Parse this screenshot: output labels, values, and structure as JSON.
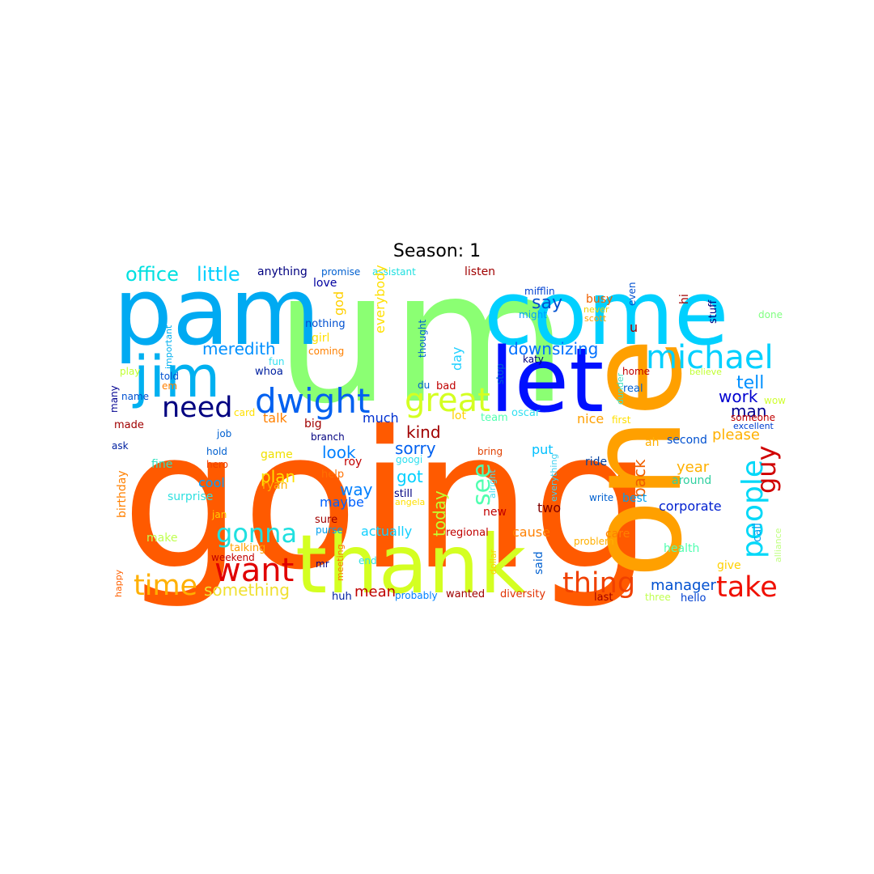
{
  "title": "Season: 1",
  "words": [
    {
      "text": "going",
      "color": "#ff5a00"
    },
    {
      "text": "um",
      "color": "#8bff73"
    },
    {
      "text": "pam",
      "color": "#00aaf2"
    },
    {
      "text": "come",
      "color": "#00d0ff"
    },
    {
      "text": "one",
      "color": "#ffa000"
    },
    {
      "text": "thank",
      "color": "#d4ff22"
    },
    {
      "text": "let",
      "color": "#0010ff"
    },
    {
      "text": "jim",
      "color": "#00b0f0"
    },
    {
      "text": "dwight",
      "color": "#0060f0"
    },
    {
      "text": "great",
      "color": "#d4ff22"
    },
    {
      "text": "michael",
      "color": "#00d0ff"
    },
    {
      "text": "need",
      "color": "#000080"
    },
    {
      "text": "want",
      "color": "#e00000"
    },
    {
      "text": "time",
      "color": "#ffb000"
    },
    {
      "text": "thing",
      "color": "#f04000"
    },
    {
      "text": "take",
      "color": "#f01000"
    },
    {
      "text": "people",
      "color": "#00d8f8"
    },
    {
      "text": "gonna",
      "color": "#20e0e0"
    },
    {
      "text": "guy",
      "color": "#d00000"
    },
    {
      "text": "office",
      "color": "#00e0e0"
    },
    {
      "text": "little",
      "color": "#00d0ff"
    },
    {
      "text": "meredith",
      "color": "#0090ff"
    },
    {
      "text": "downsizing",
      "color": "#0070ff"
    },
    {
      "text": "tell",
      "color": "#0090ff"
    },
    {
      "text": "work",
      "color": "#0000d0"
    },
    {
      "text": "man",
      "color": "#000090"
    },
    {
      "text": "kind",
      "color": "#a00000"
    },
    {
      "text": "sorry",
      "color": "#0060f0"
    },
    {
      "text": "see",
      "color": "#50ffb0"
    },
    {
      "text": "look",
      "color": "#0080ff"
    },
    {
      "text": "way",
      "color": "#0080ff"
    },
    {
      "text": "got",
      "color": "#00d0ff"
    },
    {
      "text": "say",
      "color": "#0050d0"
    },
    {
      "text": "something",
      "color": "#f0e030"
    },
    {
      "text": "manager",
      "color": "#0050d0"
    },
    {
      "text": "please",
      "color": "#ffb000"
    },
    {
      "text": "talk",
      "color": "#ff8000"
    },
    {
      "text": "much",
      "color": "#0030d0"
    },
    {
      "text": "year",
      "color": "#ffb000"
    },
    {
      "text": "actually",
      "color": "#10d0ff"
    },
    {
      "text": "corporate",
      "color": "#0020d0"
    },
    {
      "text": "plan",
      "color": "#ffe000"
    },
    {
      "text": "mean",
      "color": "#c00000"
    },
    {
      "text": "back",
      "color": "#f06000"
    },
    {
      "text": "put",
      "color": "#00c0ff"
    },
    {
      "text": "two",
      "color": "#800000"
    },
    {
      "text": "cause",
      "color": "#ff8000"
    },
    {
      "text": "nice",
      "color": "#ffa000"
    },
    {
      "text": "today",
      "color": "#c0ff30"
    },
    {
      "text": "cool",
      "color": "#00a0ff"
    },
    {
      "text": "maybe",
      "color": "#0060ff"
    },
    {
      "text": "anything",
      "color": "#000080"
    },
    {
      "text": "promise",
      "color": "#0060d0"
    },
    {
      "text": "assistant",
      "color": "#20e0e0"
    },
    {
      "text": "listen",
      "color": "#a00000"
    },
    {
      "text": "love",
      "color": "#0000a0"
    },
    {
      "text": "god",
      "color": "#ffd000"
    },
    {
      "text": "nothing",
      "color": "#0050d0"
    },
    {
      "text": "girl",
      "color": "#ffe000"
    },
    {
      "text": "coming",
      "color": "#ff8000"
    },
    {
      "text": "everybody",
      "color": "#ffe000"
    },
    {
      "text": "thought",
      "color": "#0060d0"
    },
    {
      "text": "day",
      "color": "#20d0ff"
    },
    {
      "text": "mifflin",
      "color": "#0040d0"
    },
    {
      "text": "might",
      "color": "#00a0ff"
    },
    {
      "text": "katy",
      "color": "#000080"
    },
    {
      "text": "busy",
      "color": "#f06000"
    },
    {
      "text": "never",
      "color": "#f0d000"
    },
    {
      "text": "scott",
      "color": "#ffa000"
    },
    {
      "text": "even",
      "color": "#0050d0"
    },
    {
      "text": "u",
      "color": "#a00000"
    },
    {
      "text": "hi",
      "color": "#a00000"
    },
    {
      "text": "stuff",
      "color": "#000080"
    },
    {
      "text": "done",
      "color": "#80ff80"
    },
    {
      "text": "important",
      "color": "#00b0f0"
    },
    {
      "text": "fun",
      "color": "#30e0f0"
    },
    {
      "text": "play",
      "color": "#c0ff30"
    },
    {
      "text": "told",
      "color": "#0050d0"
    },
    {
      "text": "whoa",
      "color": "#0020a0"
    },
    {
      "text": "em",
      "color": "#ff8000"
    },
    {
      "text": "many",
      "color": "#000090"
    },
    {
      "text": "name",
      "color": "#0050d0"
    },
    {
      "text": "made",
      "color": "#a00000"
    },
    {
      "text": "card",
      "color": "#ffe000"
    },
    {
      "text": "big",
      "color": "#a00000"
    },
    {
      "text": "branch",
      "color": "#000080"
    },
    {
      "text": "du",
      "color": "#0060d0"
    },
    {
      "text": "bad",
      "color": "#c00000"
    },
    {
      "text": "lot",
      "color": "#ffd000"
    },
    {
      "text": "team",
      "color": "#50ffb0"
    },
    {
      "text": "oscar",
      "color": "#30e0f0"
    },
    {
      "text": "stop",
      "color": "#0060d0"
    },
    {
      "text": "home",
      "color": "#c00000"
    },
    {
      "text": "real",
      "color": "#0060d0"
    },
    {
      "text": "dunder",
      "color": "#40e0c0"
    },
    {
      "text": "first",
      "color": "#ffe000"
    },
    {
      "text": "believe",
      "color": "#c0ff30"
    },
    {
      "text": "wow",
      "color": "#d0ff30"
    },
    {
      "text": "someone",
      "color": "#c00000"
    },
    {
      "text": "excellent",
      "color": "#0040d0"
    },
    {
      "text": "job",
      "color": "#0060d0"
    },
    {
      "text": "ask",
      "color": "#0020a0"
    },
    {
      "text": "hold",
      "color": "#0060d0"
    },
    {
      "text": "game",
      "color": "#f0e000"
    },
    {
      "text": "bring",
      "color": "#e04000"
    },
    {
      "text": "fine",
      "color": "#30e0c0"
    },
    {
      "text": "hero",
      "color": "#f04000"
    },
    {
      "text": "birthday",
      "color": "#ff8000"
    },
    {
      "text": "ryan",
      "color": "#ffb000"
    },
    {
      "text": "roy",
      "color": "#c00000"
    },
    {
      "text": "googi",
      "color": "#30e0f0"
    },
    {
      "text": "help",
      "color": "#ff7000"
    },
    {
      "text": "alright",
      "color": "#40e0f0"
    },
    {
      "text": "everything",
      "color": "#40d0f0"
    },
    {
      "text": "ride",
      "color": "#0040a0"
    },
    {
      "text": "second",
      "color": "#0050d0"
    },
    {
      "text": "ah",
      "color": "#ffb000"
    },
    {
      "text": "around",
      "color": "#30d0a0"
    },
    {
      "text": "surprise",
      "color": "#30e0e0"
    },
    {
      "text": "still",
      "color": "#000080"
    },
    {
      "text": "angela",
      "color": "#ffe000"
    },
    {
      "text": "write",
      "color": "#0060d0"
    },
    {
      "text": "best",
      "color": "#00a0f0"
    },
    {
      "text": "call",
      "color": "#00a0f0"
    },
    {
      "text": "jan",
      "color": "#ffd000"
    },
    {
      "text": "sure",
      "color": "#a00000"
    },
    {
      "text": "new",
      "color": "#c00000"
    },
    {
      "text": "purse",
      "color": "#00a0f0"
    },
    {
      "text": "regional",
      "color": "#c00000"
    },
    {
      "text": "care",
      "color": "#ff8000"
    },
    {
      "text": "problem",
      "color": "#ffb000"
    },
    {
      "text": "make",
      "color": "#c0ff50"
    },
    {
      "text": "talking",
      "color": "#ffa000"
    },
    {
      "text": "weekend",
      "color": "#c00000"
    },
    {
      "text": "mr",
      "color": "#000080"
    },
    {
      "text": "meeting",
      "color": "#ff7000"
    },
    {
      "text": "end",
      "color": "#30e0e0"
    },
    {
      "text": "dollar",
      "color": "#ffd000"
    },
    {
      "text": "health",
      "color": "#50ffb0"
    },
    {
      "text": "said",
      "color": "#0060d0"
    },
    {
      "text": "give",
      "color": "#ffd000"
    },
    {
      "text": "alliance",
      "color": "#c0ff80"
    },
    {
      "text": "happy",
      "color": "#ff6000"
    },
    {
      "text": "huh",
      "color": "#0020a0"
    },
    {
      "text": "probably",
      "color": "#0080ff"
    },
    {
      "text": "wanted",
      "color": "#a00000"
    },
    {
      "text": "diversity",
      "color": "#e03000"
    },
    {
      "text": "last",
      "color": "#a00000"
    },
    {
      "text": "three",
      "color": "#c0ff50"
    },
    {
      "text": "hello",
      "color": "#0040d0"
    }
  ]
}
